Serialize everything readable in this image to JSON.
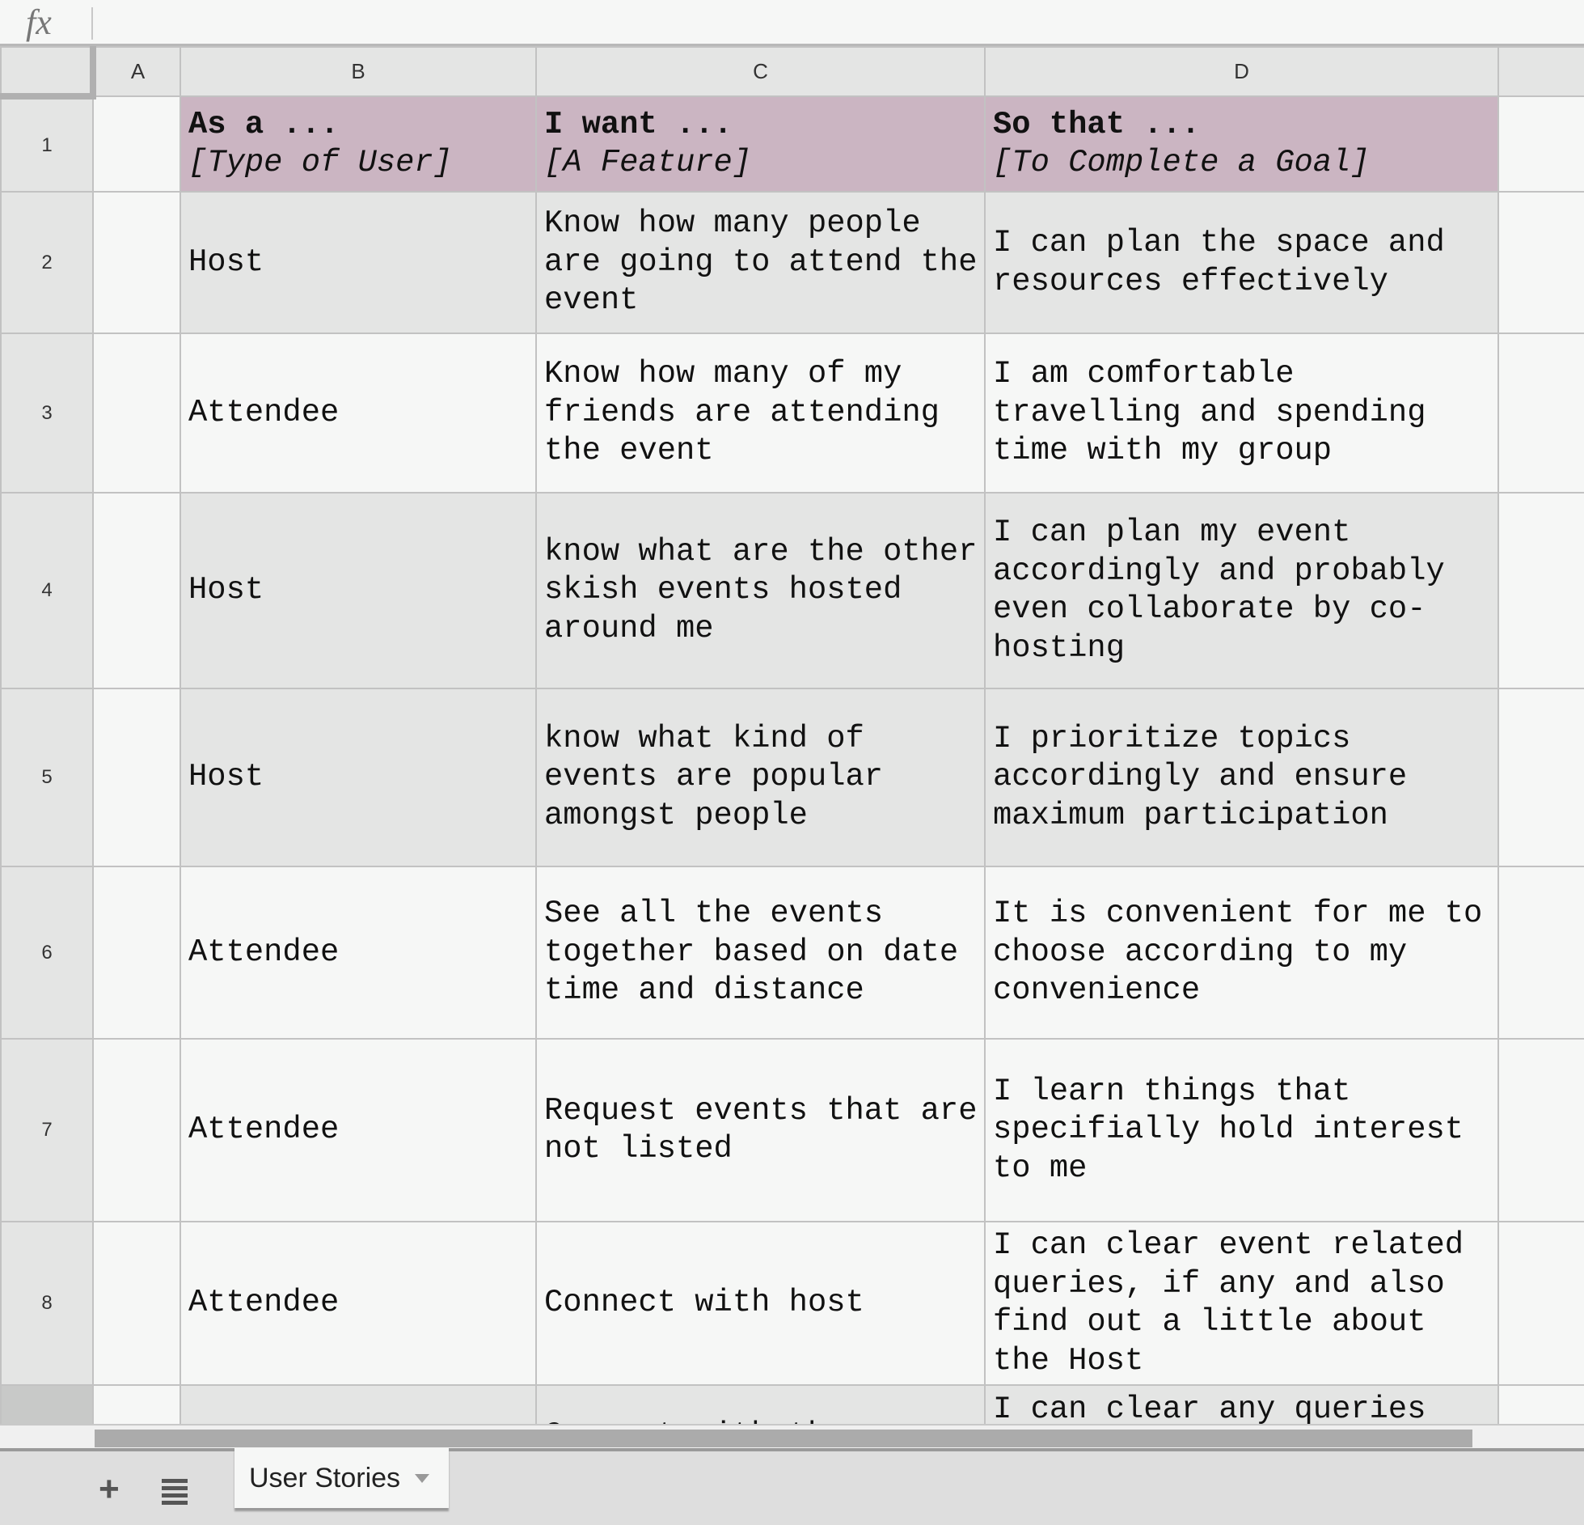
{
  "formula_bar": {
    "fx_label": "fx",
    "value": ""
  },
  "columns": [
    "A",
    "B",
    "C",
    "D"
  ],
  "header_row": {
    "number": "1",
    "b": {
      "title": "As a ...",
      "subtitle": "[Type of User]"
    },
    "c": {
      "title": "I want ...",
      "subtitle": "[A Feature]"
    },
    "d": {
      "title": "So that ...",
      "subtitle": "[To Complete a Goal]"
    },
    "color": "#cbb5c2"
  },
  "rows": [
    {
      "number": "2",
      "b": "Host",
      "c": "Know how many people are going to attend the event",
      "d": "I can plan the space and resources effectively"
    },
    {
      "number": "3",
      "b": "Attendee",
      "c": "Know how many of my friends are attending the event",
      "d": "I am comfortable travelling and spending time with my group"
    },
    {
      "number": "4",
      "b": "Host",
      "c": "know what are the other skish events hosted around me",
      "d": "I can plan my event accordingly and probably even collaborate by co-hosting"
    },
    {
      "number": "5",
      "b": "Host",
      "c": "know what kind of events are popular amongst people",
      "d": "I prioritize topics accordingly and ensure maximum participation"
    },
    {
      "number": "6",
      "b": "Attendee",
      "c": "See all the events together based on date time and distance",
      "d": "It is convenient for me to choose according to my convenience"
    },
    {
      "number": "7",
      "b": "Attendee",
      "c": "Request events that are not listed",
      "d": "I learn things that specifially hold interest to me"
    },
    {
      "number": "8",
      "b": "Attendee",
      "c": "Connect with host",
      "d": "I can clear event related queries, if any and also find out a little about the Host"
    },
    {
      "number": "",
      "b": "",
      "c": "Connect with the",
      "d": "I can clear any queries"
    }
  ],
  "sheet_tabs": {
    "add_icon": "plus-icon",
    "list_icon": "list-icon",
    "active": "User Stories"
  }
}
